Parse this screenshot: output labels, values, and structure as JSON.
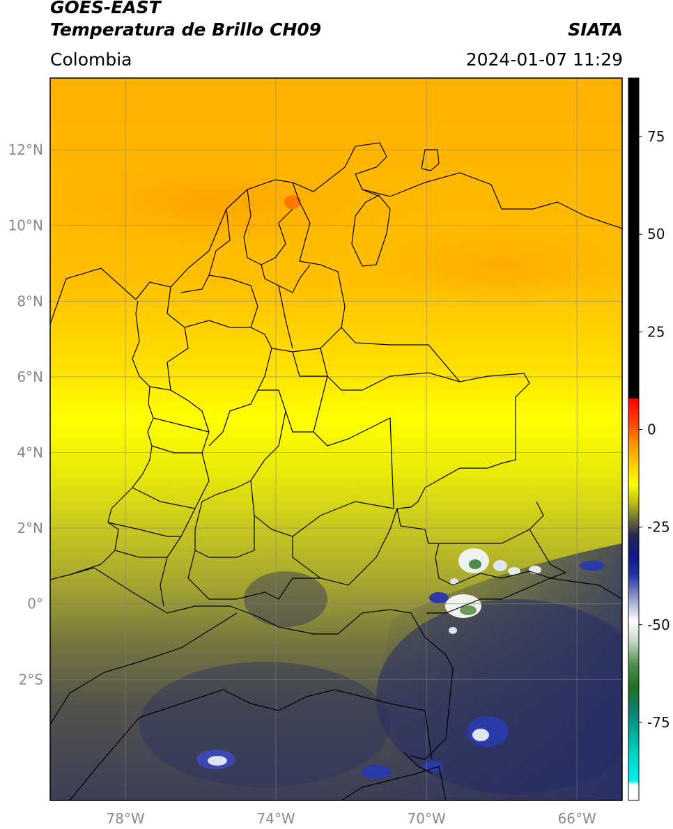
{
  "header": {
    "satellite": "GOES-EAST",
    "product": "Temperatura de Brillo CH09",
    "region": "Colombia",
    "agency": "SIATA",
    "datetime": "2024-01-07 11:29"
  },
  "map": {
    "lon_range": [
      -80,
      -64.8
    ],
    "lat_range": [
      -5.2,
      13.9
    ],
    "lat_ticks": [
      {
        "value": 12,
        "label": "12°N"
      },
      {
        "value": 10,
        "label": "10°N"
      },
      {
        "value": 8,
        "label": "8°N"
      },
      {
        "value": 6,
        "label": "6°N"
      },
      {
        "value": 4,
        "label": "4°N"
      },
      {
        "value": 2,
        "label": "2°N"
      },
      {
        "value": 0,
        "label": "0°"
      },
      {
        "value": -2,
        "label": "2°S"
      }
    ],
    "lon_ticks": [
      {
        "value": -78,
        "label": "78°W"
      },
      {
        "value": -74,
        "label": "74°W"
      },
      {
        "value": -70,
        "label": "70°W"
      },
      {
        "value": -66,
        "label": "66°W"
      }
    ]
  },
  "colorbar": {
    "min": -95,
    "max": 90,
    "ticks": [
      {
        "value": 75,
        "label": "75"
      },
      {
        "value": 50,
        "label": "50"
      },
      {
        "value": 25,
        "label": "25"
      },
      {
        "value": 0,
        "label": "0"
      },
      {
        "value": -25,
        "label": "-25"
      },
      {
        "value": -50,
        "label": "-50"
      },
      {
        "value": -75,
        "label": "-75"
      }
    ],
    "stops": [
      {
        "value": 90,
        "color": "#000000"
      },
      {
        "value": 8,
        "color": "#000000"
      },
      {
        "value": 7.9,
        "color": "#ff0000"
      },
      {
        "value": 2,
        "color": "#ff4000"
      },
      {
        "value": -4,
        "color": "#ff9900"
      },
      {
        "value": -10,
        "color": "#ffd800"
      },
      {
        "value": -14,
        "color": "#ffff00"
      },
      {
        "value": -19,
        "color": "#b8b818"
      },
      {
        "value": -23,
        "color": "#707038"
      },
      {
        "value": -27,
        "color": "#262a50"
      },
      {
        "value": -32,
        "color": "#101888"
      },
      {
        "value": -37,
        "color": "#2030a0"
      },
      {
        "value": -43,
        "color": "#9098c8"
      },
      {
        "value": -49,
        "color": "#ffffff"
      },
      {
        "value": -54,
        "color": "#c8dcc8"
      },
      {
        "value": -60,
        "color": "#509050"
      },
      {
        "value": -66,
        "color": "#207020"
      },
      {
        "value": -72,
        "color": "#108070"
      },
      {
        "value": -78,
        "color": "#00b0a0"
      },
      {
        "value": -84,
        "color": "#00d8d0"
      },
      {
        "value": -90,
        "color": "#00f0f0"
      },
      {
        "value": -91,
        "color": "#ffffff"
      },
      {
        "value": -95,
        "color": "#ffffff"
      }
    ]
  }
}
